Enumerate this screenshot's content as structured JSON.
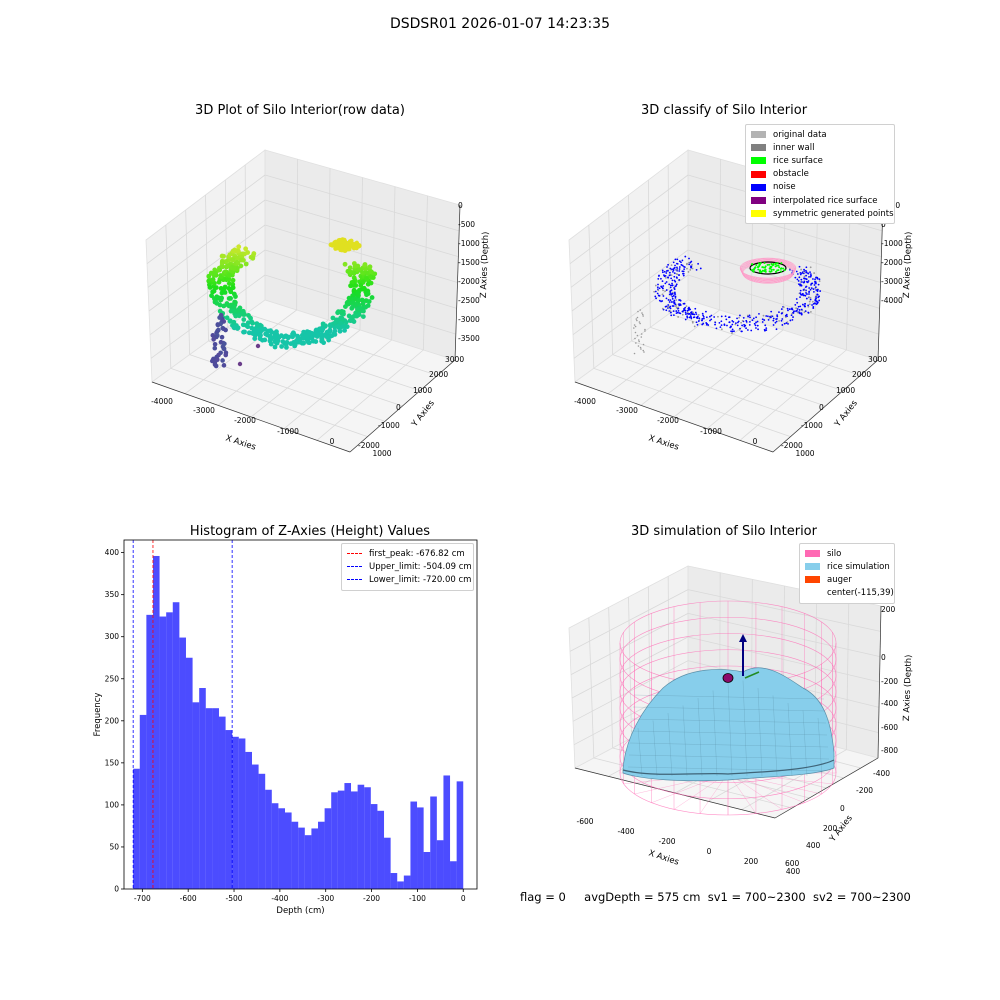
{
  "suptitle": "DSDSR01 2026-01-07 14:23:35",
  "panels": {
    "raw": {
      "title": "3D Plot of Silo Interior(row data)",
      "x_label": "X Axies",
      "y_label": "Y Axies",
      "z_label": "Z Axies (Depth)",
      "x_ticks": [
        "-4000",
        "-3000",
        "-2000",
        "-1000",
        "0",
        "1000"
      ],
      "y_ticks": [
        "-2000",
        "-1000",
        "0",
        "1000",
        "2000",
        "3000"
      ],
      "z_ticks": [
        "0",
        "-500",
        "-1000",
        "-1500",
        "-2000",
        "-2500",
        "-3000",
        "-3500"
      ]
    },
    "classify": {
      "title": "3D classify of Silo Interior",
      "x_label": "X Axies",
      "y_label": "Y Axies",
      "z_label": "Z Axies (Depth)",
      "x_ticks": [
        "-4000",
        "-3000",
        "-2000",
        "-1000",
        "0",
        "1000"
      ],
      "y_ticks": [
        "-2000",
        "-1000",
        "0",
        "1000",
        "2000",
        "3000"
      ],
      "z_ticks": [
        "1000",
        "0",
        "-1000",
        "-2000",
        "-3000",
        "-4000"
      ],
      "legend": [
        {
          "label": "original data",
          "color": "#b3b3b3"
        },
        {
          "label": "inner wall",
          "color": "#808080"
        },
        {
          "label": "rice surface",
          "color": "#00ff00"
        },
        {
          "label": "obstacle",
          "color": "#ff0000"
        },
        {
          "label": "noise",
          "color": "#0000ff"
        },
        {
          "label": "interpolated rice surface",
          "color": "#800080"
        },
        {
          "label": "symmetric generated points",
          "color": "#ffff00"
        }
      ]
    },
    "simulation": {
      "title": "3D simulation of Silo Interior",
      "x_label": "X Axies",
      "y_label": "Y Axies",
      "z_label": "Z Axies (Depth)",
      "x_ticks": [
        "-600",
        "-400",
        "-200",
        "0",
        "200",
        "400"
      ],
      "y_ticks": [
        "-400",
        "-200",
        "0",
        "200",
        "400",
        "600"
      ],
      "z_ticks": [
        "200",
        "0",
        "-200",
        "-400",
        "-600",
        "-800"
      ],
      "legend": [
        {
          "label": "silo",
          "color": "#ff69b4"
        },
        {
          "label": "rice simulation",
          "color": "#87ceeb"
        },
        {
          "label": "auger",
          "color": "#ff4500"
        },
        {
          "label": "center(-115,39)",
          "color": ""
        }
      ]
    }
  },
  "chart_data": [
    {
      "type": "bar",
      "title": "Histogram of Z-Axies (Height) Values",
      "xlabel": "Depth (cm)",
      "ylabel": "Frequency",
      "xlim": [
        -740,
        30
      ],
      "ylim": [
        0,
        415
      ],
      "x_ticks": [
        -700,
        -600,
        -500,
        -400,
        -300,
        -200,
        -100,
        0
      ],
      "y_ticks": [
        0,
        50,
        100,
        150,
        200,
        250,
        300,
        350,
        400
      ],
      "bin_start": -720,
      "bin_width": 14.4,
      "bar_color": "#0000ff",
      "values": [
        143,
        207,
        326,
        396,
        324,
        329,
        341,
        299,
        275,
        222,
        239,
        215,
        215,
        205,
        189,
        181,
        179,
        163,
        148,
        137,
        118,
        102,
        96,
        91,
        80,
        73,
        64,
        72,
        80,
        96,
        115,
        117,
        126,
        116,
        124,
        121,
        101,
        93,
        61,
        19,
        9,
        16,
        104,
        97,
        44,
        110,
        58,
        135,
        33,
        128
      ],
      "lines": [
        {
          "label": "first_peak: -676.82 cm",
          "x": -676.82,
          "color": "#ff0000"
        },
        {
          "label": "Upper_limit: -504.09 cm",
          "x": -504.09,
          "color": "#0000ff"
        },
        {
          "label": "Lower_limit: -720.00 cm",
          "x": -720.0,
          "color": "#0000ff"
        }
      ],
      "legend_position": "top-right"
    }
  ],
  "status": {
    "flag": "flag = 0",
    "avg": "avgDepth = 575 cm",
    "sv1": "sv1 = 700~2300",
    "sv2": "sv2 = 700~2300"
  }
}
